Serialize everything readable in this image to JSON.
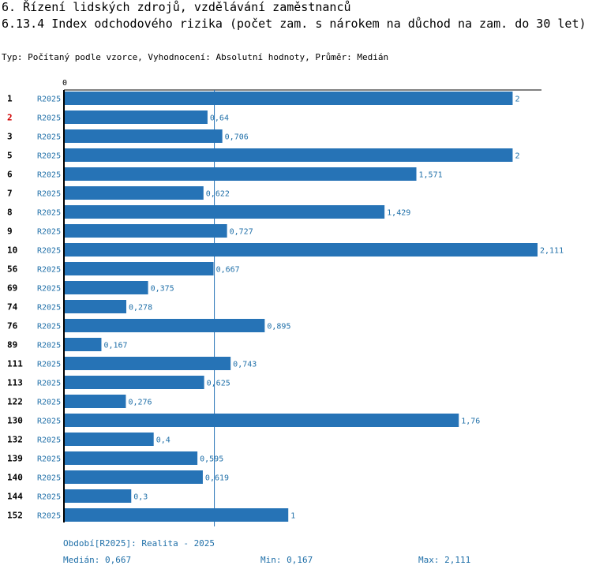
{
  "header": {
    "section": "6. Řízení lidských zdrojů, vzdělávání zaměstnanců",
    "indicator": "6.13.4 Index odchodového rizika (počet zam. s nárokem na důchod na zam. do 30 let)",
    "subtitle": "Typ: Počítaný podle vzorce, Vyhodnocení: Absolutní hodnoty, Průměr: Medián"
  },
  "colors": {
    "bar": "#2673b6",
    "label": "#1f6fa8",
    "highlight": "#d00000",
    "axis": "#000000"
  },
  "chart_data": {
    "type": "bar",
    "orientation": "horizontal",
    "axis_zero_label": "0",
    "xlim": [
      0,
      2.111
    ],
    "median": 0.667,
    "rows": [
      {
        "id": "1",
        "period": "R2025",
        "value": 2,
        "label": "2",
        "highlight": false
      },
      {
        "id": "2",
        "period": "R2025",
        "value": 0.64,
        "label": "0,64",
        "highlight": true
      },
      {
        "id": "3",
        "period": "R2025",
        "value": 0.706,
        "label": "0,706",
        "highlight": false
      },
      {
        "id": "5",
        "period": "R2025",
        "value": 2,
        "label": "2",
        "highlight": false
      },
      {
        "id": "6",
        "period": "R2025",
        "value": 1.571,
        "label": "1,571",
        "highlight": false
      },
      {
        "id": "7",
        "period": "R2025",
        "value": 0.622,
        "label": "0,622",
        "highlight": false
      },
      {
        "id": "8",
        "period": "R2025",
        "value": 1.429,
        "label": "1,429",
        "highlight": false
      },
      {
        "id": "9",
        "period": "R2025",
        "value": 0.727,
        "label": "0,727",
        "highlight": false
      },
      {
        "id": "10",
        "period": "R2025",
        "value": 2.111,
        "label": "2,111",
        "highlight": false
      },
      {
        "id": "56",
        "period": "R2025",
        "value": 0.667,
        "label": "0,667",
        "highlight": false
      },
      {
        "id": "69",
        "period": "R2025",
        "value": 0.375,
        "label": "0,375",
        "highlight": false
      },
      {
        "id": "74",
        "period": "R2025",
        "value": 0.278,
        "label": "0,278",
        "highlight": false
      },
      {
        "id": "76",
        "period": "R2025",
        "value": 0.895,
        "label": "0,895",
        "highlight": false
      },
      {
        "id": "89",
        "period": "R2025",
        "value": 0.167,
        "label": "0,167",
        "highlight": false
      },
      {
        "id": "111",
        "period": "R2025",
        "value": 0.743,
        "label": "0,743",
        "highlight": false
      },
      {
        "id": "113",
        "period": "R2025",
        "value": 0.625,
        "label": "0,625",
        "highlight": false
      },
      {
        "id": "122",
        "period": "R2025",
        "value": 0.276,
        "label": "0,276",
        "highlight": false
      },
      {
        "id": "130",
        "period": "R2025",
        "value": 1.76,
        "label": "1,76",
        "highlight": false
      },
      {
        "id": "132",
        "period": "R2025",
        "value": 0.4,
        "label": "0,4",
        "highlight": false
      },
      {
        "id": "139",
        "period": "R2025",
        "value": 0.595,
        "label": "0,595",
        "highlight": false
      },
      {
        "id": "140",
        "period": "R2025",
        "value": 0.619,
        "label": "0,619",
        "highlight": false
      },
      {
        "id": "144",
        "period": "R2025",
        "value": 0.3,
        "label": "0,3",
        "highlight": false
      },
      {
        "id": "152",
        "period": "R2025",
        "value": 1,
        "label": "1",
        "highlight": false
      }
    ]
  },
  "footer": {
    "period_legend": "Období[R2025]: Realita - 2025",
    "median_text": "Medián: 0,667",
    "min_text": "Min: 0,167",
    "max_text": "Max: 2,111"
  }
}
